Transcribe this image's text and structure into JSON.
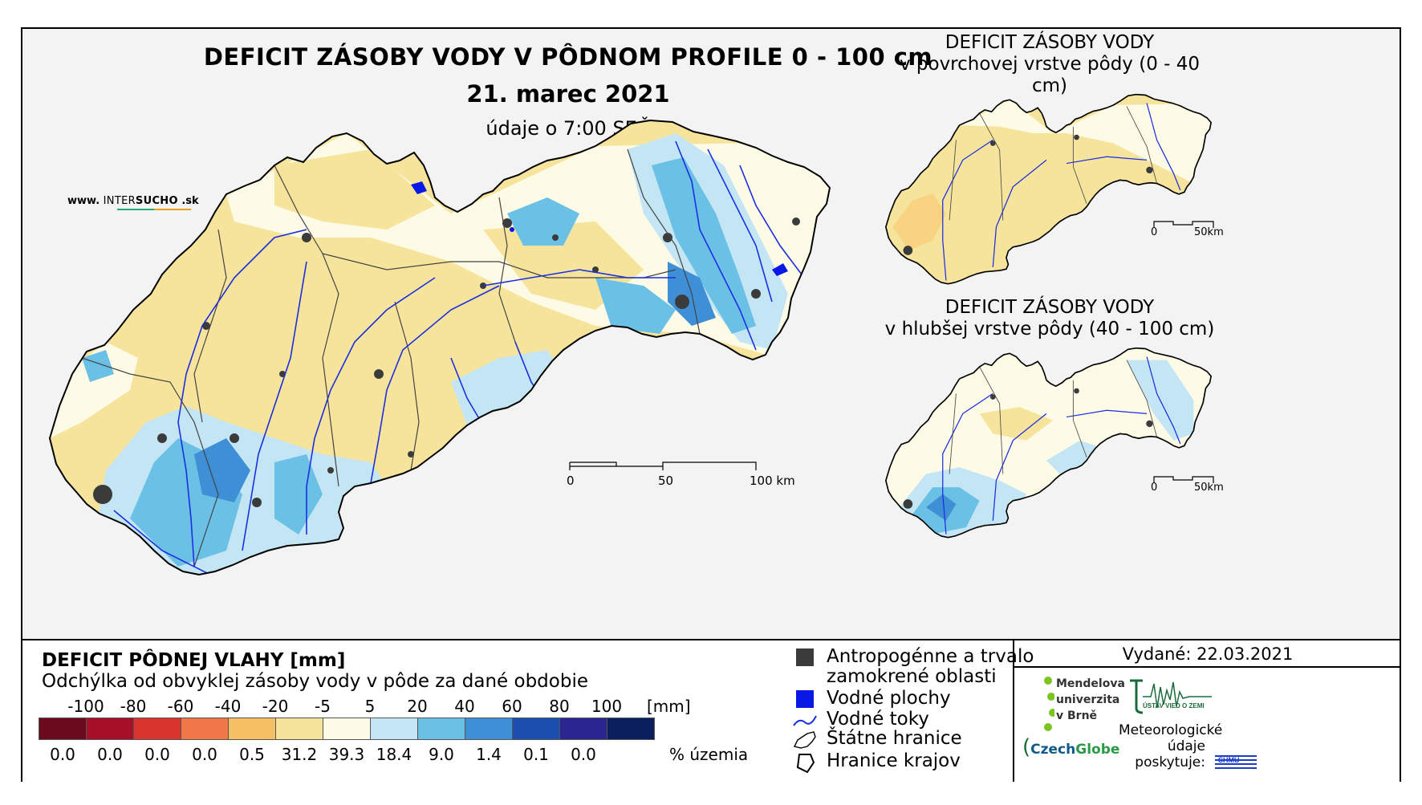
{
  "main": {
    "title": "DEFICIT ZÁSOBY VODY V PÔDNOM PROFILE 0 - 100 cm",
    "date": "21. marec 2021",
    "time": "údaje o 7:00 SEČ",
    "website_prefix": "www.",
    "website_brand_a": "INTER",
    "website_brand_b": "SUCHO",
    "website_suffix": ".sk",
    "scale": {
      "ticks": [
        "0",
        "50",
        "100 km"
      ]
    }
  },
  "inset_top": {
    "title_line1": "DEFICIT ZÁSOBY VODY",
    "title_line2": "v povrchovej vrstve pôdy (0 - 40 cm)",
    "scale": {
      "ticks": [
        "0",
        "50km"
      ]
    }
  },
  "inset_bottom": {
    "title_line1": "DEFICIT ZÁSOBY VODY",
    "title_line2": "v hlubšej vrstve pôdy (40 - 100 cm)",
    "scale": {
      "ticks": [
        "0",
        "50km"
      ]
    }
  },
  "legend": {
    "title": "DEFICIT PÔDNEJ VLAHY [mm]",
    "subtitle": "Odchýlka od obvyklej zásoby vody v pôde za dané obdobie",
    "unit": "[mm]",
    "ticks": [
      "-100",
      "-80",
      "-60",
      "-40",
      "-20",
      "-5",
      "5",
      "20",
      "40",
      "60",
      "80",
      "100"
    ],
    "classes": [
      {
        "color": "#6b0a1f",
        "pct": "0.0"
      },
      {
        "color": "#a8102a",
        "pct": "0.0"
      },
      {
        "color": "#d8362c",
        "pct": "0.0"
      },
      {
        "color": "#f07848",
        "pct": "0.0"
      },
      {
        "color": "#f7bf63",
        "pct": "0.5"
      },
      {
        "color": "#f7e49c",
        "pct": "31.2"
      },
      {
        "color": "#fdfbe6",
        "pct": "39.3"
      },
      {
        "color": "#c4e6f4",
        "pct": "18.4"
      },
      {
        "color": "#6bc0e6",
        "pct": "9.0"
      },
      {
        "color": "#3f8fd6",
        "pct": "1.4"
      },
      {
        "color": "#1c4fb0",
        "pct": "0.1"
      },
      {
        "color": "#2a2590",
        "pct": "0.0"
      },
      {
        "color": "#0b1f5c",
        "pct": ""
      }
    ],
    "pct_label": "% územia"
  },
  "symbols": [
    {
      "icon": "urban-area-icon",
      "text_line1": "Antropogénne a trvalo",
      "text_line2": "zamokrené oblasti"
    },
    {
      "icon": "water-body-icon",
      "text_line1": "Vodné plochy",
      "text_line2": ""
    },
    {
      "icon": "river-icon",
      "text_line1": "Vodné toky",
      "text_line2": ""
    },
    {
      "icon": "state-border-icon",
      "text_line1": "Štátne hranice",
      "text_line2": ""
    },
    {
      "icon": "region-border-icon",
      "text_line1": "Hranice krajov",
      "text_line2": ""
    }
  ],
  "info": {
    "issued": "Vydané: 22.03.2021",
    "mendel": [
      "Mendelova",
      "univerzita",
      "v Brně"
    ],
    "czechglobe_a": "Czech",
    "czechglobe_b": "Globe",
    "uvz": "ÚSTAV VIED O ZEMI",
    "meteo": [
      "Meteorologické",
      "údaje",
      "poskytuje:"
    ],
    "shmu": "SHMU"
  },
  "colors": {
    "urban": "#3b3b3b",
    "water": "#0a18e6",
    "river": "#1b2ee0",
    "border": "#000000"
  }
}
